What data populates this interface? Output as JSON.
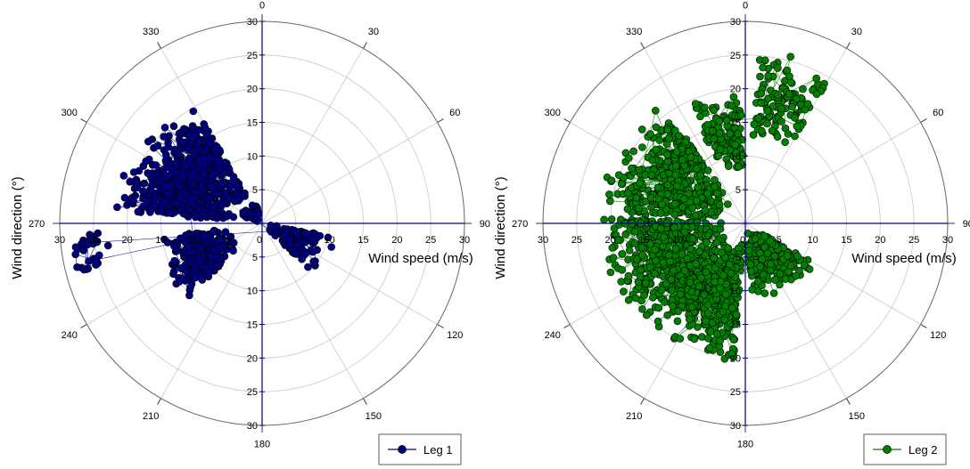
{
  "chart_data": [
    {
      "type": "scatter",
      "coordinate_system": "polar",
      "angular_ticks": [
        "0",
        "30",
        "60",
        "90",
        "120",
        "150",
        "180",
        "210",
        "240",
        "270",
        "300",
        "330"
      ],
      "radial_ticks": [
        "0",
        "5",
        "10",
        "15",
        "20",
        "25",
        "30"
      ],
      "rlim": [
        0,
        30
      ],
      "xlabel": "Wind speed (m/s)",
      "ylabel": "Wind direction (°)",
      "legend_position": "bottom-right",
      "grid": true,
      "series": [
        {
          "name": "Leg 1",
          "color": "#00007f",
          "clusters": [
            {
              "theta_range": [
                292,
                330
              ],
              "r_range": [
                4,
                21
              ],
              "density": "very high"
            },
            {
              "theta_range": [
                275,
                295
              ],
              "r_range": [
                4,
                22
              ],
              "density": "high"
            },
            {
              "theta_range": [
                225,
                262
              ],
              "r_range": [
                5,
                16
              ],
              "density": "high"
            },
            {
              "theta_range": [
                255,
                268
              ],
              "r_range": [
                22,
                29
              ],
              "density": "low"
            },
            {
              "theta_range": [
                100,
                135
              ],
              "r_range": [
                1,
                11
              ],
              "density": "medium"
            },
            {
              "theta_range": [
                290,
                345
              ],
              "r_range": [
                0.5,
                4
              ],
              "density": "low"
            }
          ]
        },
        {
          "name": "Leg 2",
          "color": "#007f00",
          "clusters": [
            {
              "theta_range": [
                5,
                30
              ],
              "r_range": [
                12,
                26
              ],
              "density": "medium"
            },
            {
              "theta_range": [
                335,
                358
              ],
              "r_range": [
                8,
                20
              ],
              "density": "medium"
            },
            {
              "theta_range": [
                275,
                325
              ],
              "r_range": [
                3,
                22
              ],
              "density": "very high"
            },
            {
              "theta_range": [
                225,
                272
              ],
              "r_range": [
                3,
                22
              ],
              "density": "very high"
            },
            {
              "theta_range": [
                185,
                225
              ],
              "r_range": [
                3,
                21
              ],
              "density": "very high"
            },
            {
              "theta_range": [
                120,
                175
              ],
              "r_range": [
                1,
                12
              ],
              "density": "high"
            }
          ]
        }
      ]
    }
  ],
  "charts": [
    {
      "legend_label": "Leg 1",
      "series_color": "#00007f",
      "axis_color": "#00007f"
    },
    {
      "legend_label": "Leg 2",
      "series_color": "#007f00",
      "axis_color": "#00007f"
    }
  ]
}
